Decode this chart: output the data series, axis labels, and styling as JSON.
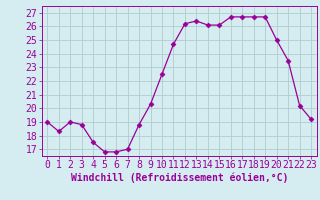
{
  "x": [
    0,
    1,
    2,
    3,
    4,
    5,
    6,
    7,
    8,
    9,
    10,
    11,
    12,
    13,
    14,
    15,
    16,
    17,
    18,
    19,
    20,
    21,
    22,
    23
  ],
  "y": [
    19,
    18.3,
    19,
    18.8,
    17.5,
    16.8,
    16.8,
    17.0,
    18.8,
    20.3,
    22.5,
    24.7,
    26.2,
    26.4,
    26.1,
    26.1,
    26.7,
    26.7,
    26.7,
    26.7,
    25.0,
    23.5,
    20.2,
    19.2
  ],
  "line_color": "#990099",
  "marker": "D",
  "marker_size": 2.5,
  "bg_color": "#d5edf0",
  "grid_color": "#b0cccc",
  "xlabel": "Windchill (Refroidissement éolien,°C)",
  "xlabel_fontsize": 7,
  "yticks": [
    17,
    18,
    19,
    20,
    21,
    22,
    23,
    24,
    25,
    26,
    27
  ],
  "xticks": [
    0,
    1,
    2,
    3,
    4,
    5,
    6,
    7,
    8,
    9,
    10,
    11,
    12,
    13,
    14,
    15,
    16,
    17,
    18,
    19,
    20,
    21,
    22,
    23
  ],
  "ylim": [
    16.5,
    27.5
  ],
  "xlim": [
    -0.5,
    23.5
  ],
  "tick_fontsize": 7,
  "tick_color": "#990099",
  "axis_color": "#990099"
}
